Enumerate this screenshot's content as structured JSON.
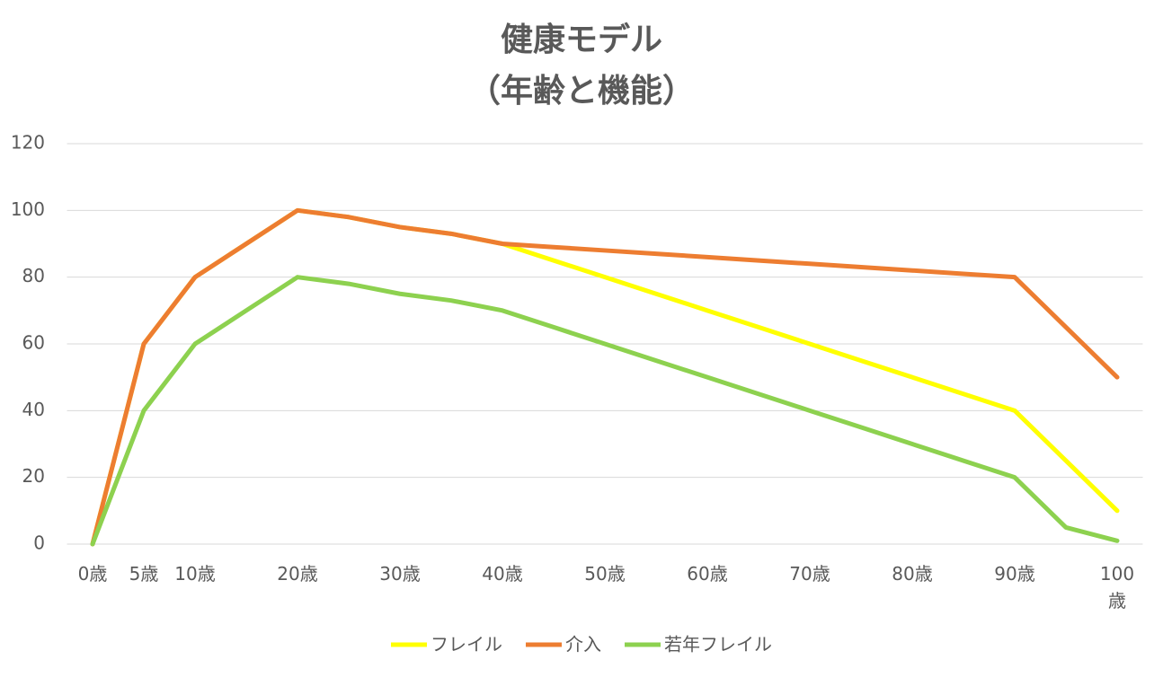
{
  "chart_data": {
    "type": "line",
    "title": "健康モデル",
    "subtitle": "（年齢と機能）",
    "categories": [
      "0歳",
      "5歳",
      "10歳",
      null,
      "20歳",
      null,
      "30歳",
      null,
      "40歳",
      null,
      "50歳",
      null,
      "60歳",
      null,
      "70歳",
      null,
      "80歳",
      null,
      "90歳",
      null,
      "100歳"
    ],
    "series": [
      {
        "name": "フレイル",
        "color": "#ffff00",
        "values": [
          0,
          60,
          80,
          90,
          100,
          98,
          95,
          93,
          90,
          85,
          80,
          75,
          70,
          65,
          60,
          55,
          50,
          45,
          40,
          25,
          10
        ]
      },
      {
        "name": "介入",
        "color": "#ed7d31",
        "values": [
          0,
          60,
          80,
          90,
          100,
          98,
          95,
          93,
          90,
          89,
          88,
          87,
          86,
          85,
          84,
          83,
          82,
          81,
          80,
          65,
          50
        ]
      },
      {
        "name": "若年フレイル",
        "color": "#8dd14f",
        "values": [
          0,
          40,
          60,
          70,
          80,
          78,
          75,
          73,
          70,
          65,
          60,
          55,
          50,
          45,
          40,
          35,
          30,
          25,
          20,
          5,
          1
        ]
      }
    ],
    "ylim": [
      0,
      120
    ],
    "yticks": [
      0,
      20,
      40,
      60,
      80,
      100,
      120
    ],
    "grid": true,
    "legend": "bottom"
  }
}
